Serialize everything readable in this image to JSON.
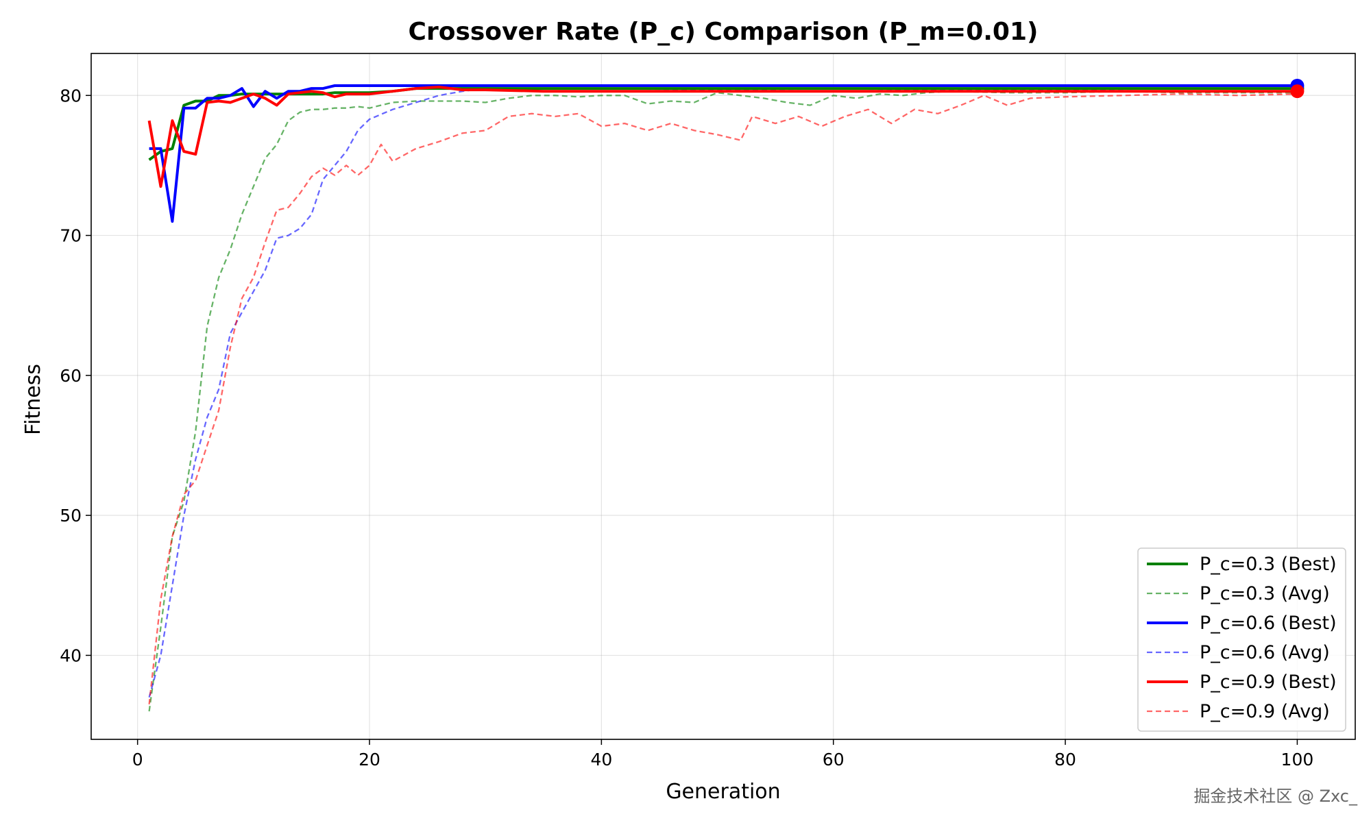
{
  "watermark": "掘金技术社区 @ Zxc_",
  "chart_data": {
    "type": "line",
    "title": "Crossover Rate (P_c) Comparison (P_m=0.01)",
    "xlabel": "Generation",
    "ylabel": "Fitness",
    "xlim": [
      -4,
      105
    ],
    "ylim": [
      34,
      83
    ],
    "xticks": [
      0,
      20,
      40,
      60,
      80,
      100
    ],
    "yticks": [
      40,
      50,
      60,
      70,
      80
    ],
    "grid": true,
    "legend_position": "lower-right",
    "series": [
      {
        "name": "P_c=0.3 (Best)",
        "color": "#008000",
        "style": "solid",
        "marker_at_end": true,
        "x": [
          1,
          2,
          3,
          4,
          5,
          6,
          7,
          8,
          9,
          10,
          11,
          12,
          13,
          14,
          15,
          16,
          17,
          18,
          19,
          20,
          22,
          24,
          26,
          28,
          30,
          40,
          50,
          60,
          70,
          80,
          90,
          100
        ],
        "y": [
          75.4,
          76.0,
          76.2,
          79.3,
          79.6,
          79.6,
          80.0,
          80.0,
          80.1,
          80.1,
          80.1,
          80.1,
          80.1,
          80.1,
          80.1,
          80.1,
          80.2,
          80.2,
          80.2,
          80.2,
          80.3,
          80.5,
          80.5,
          80.5,
          80.5,
          80.5,
          80.5,
          80.5,
          80.5,
          80.5,
          80.5,
          80.5
        ]
      },
      {
        "name": "P_c=0.3 (Avg)",
        "color": "#008000",
        "style": "dashed",
        "opacity": 0.6,
        "x": [
          1,
          2,
          3,
          4,
          5,
          6,
          7,
          8,
          9,
          10,
          11,
          12,
          13,
          14,
          15,
          16,
          17,
          18,
          19,
          20,
          22,
          24,
          26,
          28,
          30,
          32,
          34,
          36,
          38,
          40,
          42,
          44,
          46,
          48,
          50,
          52,
          54,
          56,
          58,
          60,
          62,
          64,
          66,
          68,
          70,
          75,
          80,
          85,
          90,
          95,
          100
        ],
        "y": [
          36.0,
          42.0,
          48.5,
          51.0,
          56.0,
          63.5,
          67.0,
          69.0,
          71.5,
          73.5,
          75.5,
          76.5,
          78.2,
          78.8,
          79.0,
          79.0,
          79.1,
          79.1,
          79.2,
          79.1,
          79.5,
          79.6,
          79.6,
          79.6,
          79.5,
          79.8,
          80.0,
          80.0,
          79.9,
          80.0,
          80.0,
          79.4,
          79.6,
          79.5,
          80.2,
          80.0,
          79.8,
          79.5,
          79.3,
          80.0,
          79.8,
          80.1,
          80.0,
          80.2,
          80.3,
          80.2,
          80.2,
          80.3,
          80.2,
          80.2,
          80.2
        ]
      },
      {
        "name": "P_c=0.6 (Best)",
        "color": "#0000ff",
        "style": "solid",
        "marker_at_end": true,
        "x": [
          1,
          2,
          3,
          4,
          5,
          6,
          7,
          8,
          9,
          10,
          11,
          12,
          13,
          14,
          15,
          16,
          17,
          18,
          20,
          22,
          25,
          30,
          40,
          50,
          60,
          70,
          80,
          90,
          100
        ],
        "y": [
          76.2,
          76.2,
          71.0,
          79.1,
          79.1,
          79.8,
          79.8,
          80.0,
          80.5,
          79.2,
          80.3,
          79.8,
          80.3,
          80.3,
          80.5,
          80.5,
          80.7,
          80.7,
          80.7,
          80.7,
          80.7,
          80.7,
          80.7,
          80.7,
          80.7,
          80.7,
          80.7,
          80.7,
          80.7
        ]
      },
      {
        "name": "P_c=0.6 (Avg)",
        "color": "#0000ff",
        "style": "dashed",
        "opacity": 0.6,
        "x": [
          1,
          2,
          3,
          4,
          5,
          6,
          7,
          8,
          9,
          10,
          11,
          12,
          13,
          14,
          15,
          16,
          17,
          18,
          19,
          20,
          22,
          24,
          26,
          28,
          30,
          35,
          40,
          50,
          60,
          70,
          80,
          90,
          100
        ],
        "y": [
          37.0,
          40.0,
          45.0,
          50.0,
          54.0,
          57.0,
          59.0,
          63.0,
          64.5,
          66.0,
          67.5,
          69.8,
          70.0,
          70.5,
          71.5,
          74.0,
          75.0,
          76.0,
          77.5,
          78.3,
          79.0,
          79.5,
          80.0,
          80.3,
          80.5,
          80.5,
          80.5,
          80.4,
          80.3,
          80.4,
          80.4,
          80.5,
          80.5
        ]
      },
      {
        "name": "P_c=0.9 (Best)",
        "color": "#ff0000",
        "style": "solid",
        "marker_at_end": true,
        "x": [
          1,
          2,
          3,
          4,
          5,
          6,
          7,
          8,
          9,
          10,
          11,
          12,
          13,
          14,
          15,
          16,
          17,
          18,
          20,
          22,
          24,
          26,
          28,
          30,
          35,
          40,
          50,
          60,
          70,
          80,
          90,
          100
        ],
        "y": [
          78.2,
          73.5,
          78.2,
          76.0,
          75.8,
          79.5,
          79.6,
          79.5,
          79.8,
          80.1,
          79.8,
          79.3,
          80.1,
          80.2,
          80.3,
          80.2,
          79.9,
          80.1,
          80.1,
          80.3,
          80.5,
          80.6,
          80.4,
          80.4,
          80.3,
          80.3,
          80.3,
          80.3,
          80.3,
          80.3,
          80.3,
          80.3
        ]
      },
      {
        "name": "P_c=0.9 (Avg)",
        "color": "#ff0000",
        "style": "dashed",
        "opacity": 0.6,
        "x": [
          1,
          2,
          3,
          4,
          5,
          6,
          7,
          8,
          9,
          10,
          11,
          12,
          13,
          14,
          15,
          16,
          17,
          18,
          19,
          20,
          21,
          22,
          24,
          26,
          28,
          30,
          32,
          34,
          36,
          38,
          40,
          42,
          44,
          46,
          48,
          50,
          52,
          53,
          55,
          57,
          59,
          61,
          63,
          65,
          67,
          69,
          71,
          73,
          75,
          77,
          80,
          85,
          90,
          95,
          100
        ],
        "y": [
          36.5,
          44.0,
          48.5,
          51.5,
          52.5,
          55.0,
          57.5,
          62.0,
          65.5,
          67.0,
          69.5,
          71.8,
          72.0,
          73.0,
          74.2,
          74.8,
          74.3,
          75.0,
          74.3,
          75.0,
          76.5,
          75.3,
          76.2,
          76.7,
          77.3,
          77.5,
          78.5,
          78.7,
          78.5,
          78.7,
          77.8,
          78.0,
          77.5,
          78.0,
          77.5,
          77.2,
          76.8,
          78.5,
          78.0,
          78.5,
          77.8,
          78.5,
          79.0,
          78.0,
          79.0,
          78.7,
          79.3,
          80.0,
          79.3,
          79.8,
          79.9,
          80.0,
          80.1,
          80.0,
          80.1
        ]
      }
    ]
  }
}
